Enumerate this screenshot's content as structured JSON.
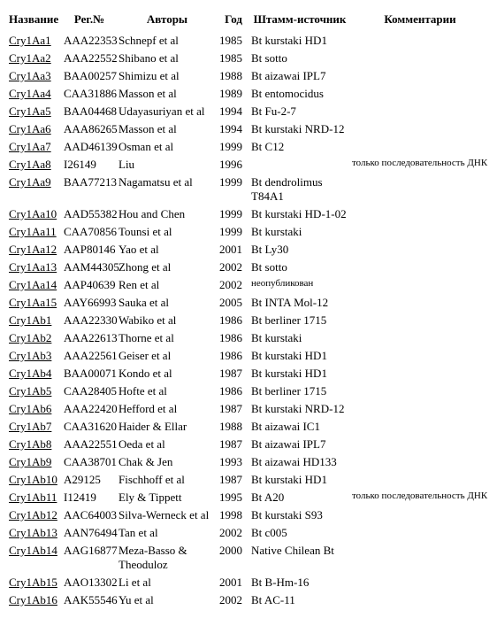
{
  "headers": {
    "name": "Название",
    "reg": "Рег.№",
    "authors": "Авторы",
    "year": "Год",
    "strain": "Штамм-источник",
    "comments": "Комментарии"
  },
  "rows": [
    {
      "name": "Cry1Aa1",
      "reg": "AAA22353",
      "authors": "Schnepf et al",
      "year": "1985",
      "strain": "Bt kurstaki HD1",
      "comments": ""
    },
    {
      "name": "Cry1Aa2",
      "reg": "AAA22552",
      "authors": "Shibano et al",
      "year": "1985",
      "strain": "Bt sotto",
      "comments": ""
    },
    {
      "name": "Cry1Aa3",
      "reg": "BAA00257",
      "authors": "Shimizu et al",
      "year": "1988",
      "strain": "Bt aizawai IPL7",
      "comments": ""
    },
    {
      "name": "Cry1Aa4",
      "reg": "CAA31886",
      "authors": "Masson et al",
      "year": "1989",
      "strain": "Bt entomocidus",
      "comments": ""
    },
    {
      "name": "Cry1Aa5",
      "reg": "BAA04468",
      "authors": "Udayasuriyan et al",
      "year": "1994",
      "strain": "Bt Fu-2-7",
      "comments": ""
    },
    {
      "name": "Cry1Aa6",
      "reg": "AAA86265",
      "authors": "Masson et al",
      "year": "1994",
      "strain": "Bt kurstaki NRD-12",
      "comments": ""
    },
    {
      "name": "Cry1Aa7",
      "reg": "AAD46139",
      "authors": "Osman et al",
      "year": "1999",
      "strain": "Bt C12",
      "comments": ""
    },
    {
      "name": "Cry1Aa8",
      "reg": "I26149",
      "authors": "Liu",
      "year": "1996",
      "strain": "",
      "comments": "только последовательность ДНК"
    },
    {
      "name": "Cry1Aa9",
      "reg": "BAA77213",
      "authors": "Nagamatsu et al",
      "year": "1999",
      "strain": "Bt dendrolimus T84A1",
      "comments": ""
    },
    {
      "name": "Cry1Aa10",
      "reg": "AAD55382",
      "authors": "Hou and Chen",
      "year": "1999",
      "strain": "Bt kurstaki HD-1-02",
      "comments": ""
    },
    {
      "name": "Cry1Aa11",
      "reg": "CAA70856",
      "authors": "Tounsi et al",
      "year": "1999",
      "strain": "Bt kurstaki",
      "comments": ""
    },
    {
      "name": "Cry1Aa12",
      "reg": "AAP80146",
      "authors": "Yao et al",
      "year": "2001",
      "strain": "Bt Ly30",
      "comments": ""
    },
    {
      "name": "Cry1Aa13",
      "reg": "AAM44305",
      "authors": "Zhong et al",
      "year": "2002",
      "strain": "Bt sotto",
      "comments": ""
    },
    {
      "name": "Cry1Aa14",
      "reg": "AAP40639",
      "authors": "Ren et al",
      "year": "2002",
      "strain": "неопубликован",
      "comments": "",
      "strainSmall": true
    },
    {
      "name": "Cry1Aa15",
      "reg": "AAY66993",
      "authors": "Sauka et al",
      "year": "2005",
      "strain": "Bt INTA Mol-12",
      "comments": ""
    },
    {
      "name": "Cry1Ab1",
      "reg": "AAA22330",
      "authors": "Wabiko et al",
      "year": "1986",
      "strain": "Bt berliner 1715",
      "comments": ""
    },
    {
      "name": "Cry1Ab2",
      "reg": "AAA22613",
      "authors": "Thorne et al",
      "year": "1986",
      "strain": "Bt kurstaki",
      "comments": ""
    },
    {
      "name": "Cry1Ab3",
      "reg": "AAA22561",
      "authors": "Geiser et al",
      "year": "1986",
      "strain": "Bt kurstaki HD1",
      "comments": ""
    },
    {
      "name": "Cry1Ab4",
      "reg": "BAA00071",
      "authors": "Kondo et al",
      "year": "1987",
      "strain": "Bt kurstaki HD1",
      "comments": ""
    },
    {
      "name": "Cry1Ab5",
      "reg": "CAA28405",
      "authors": "Hofte et al",
      "year": "1986",
      "strain": "Bt berliner 1715",
      "comments": ""
    },
    {
      "name": "Cry1Ab6",
      "reg": "AAA22420",
      "authors": "Hefford et al",
      "year": "1987",
      "strain": "Bt kurstaki NRD-12",
      "comments": ""
    },
    {
      "name": "Cry1Ab7",
      "reg": "CAA31620",
      "authors": "Haider & Ellar",
      "year": "1988",
      "strain": "Bt aizawai IC1",
      "comments": ""
    },
    {
      "name": "Cry1Ab8",
      "reg": "AAA22551",
      "authors": "Oeda et al",
      "year": "1987",
      "strain": "Bt aizawai IPL7",
      "comments": ""
    },
    {
      "name": "Cry1Ab9",
      "reg": "CAA38701",
      "authors": "Chak & Jen",
      "year": "1993",
      "strain": "Bt aizawai HD133",
      "comments": ""
    },
    {
      "name": "Cry1Ab10",
      "reg": "A29125",
      "authors": "Fischhoff et al",
      "year": "1987",
      "strain": "Bt kurstaki HD1",
      "comments": ""
    },
    {
      "name": "Cry1Ab11",
      "reg": "I12419",
      "authors": "Ely & Tippett",
      "year": "1995",
      "strain": "Bt A20",
      "comments": "только последовательность ДНК"
    },
    {
      "name": "Cry1Ab12",
      "reg": "AAC64003",
      "authors": "Silva-Werneck et al",
      "year": "1998",
      "strain": "Bt kurstaki S93",
      "comments": ""
    },
    {
      "name": "Cry1Ab13",
      "reg": "AAN76494",
      "authors": "Tan et al",
      "year": "2002",
      "strain": "Bt c005",
      "comments": ""
    },
    {
      "name": "Cry1Ab14",
      "reg": "AAG16877",
      "authors": "Meza-Basso & Theoduloz",
      "year": "2000",
      "strain": "Native Chilean Bt",
      "comments": ""
    },
    {
      "name": "Cry1Ab15",
      "reg": "AAO13302",
      "authors": "Li et al",
      "year": "2001",
      "strain": "Bt B-Hm-16",
      "comments": ""
    },
    {
      "name": "Cry1Ab16",
      "reg": "AAK55546",
      "authors": "Yu et al",
      "year": "2002",
      "strain": "Bt AC-11",
      "comments": ""
    }
  ]
}
